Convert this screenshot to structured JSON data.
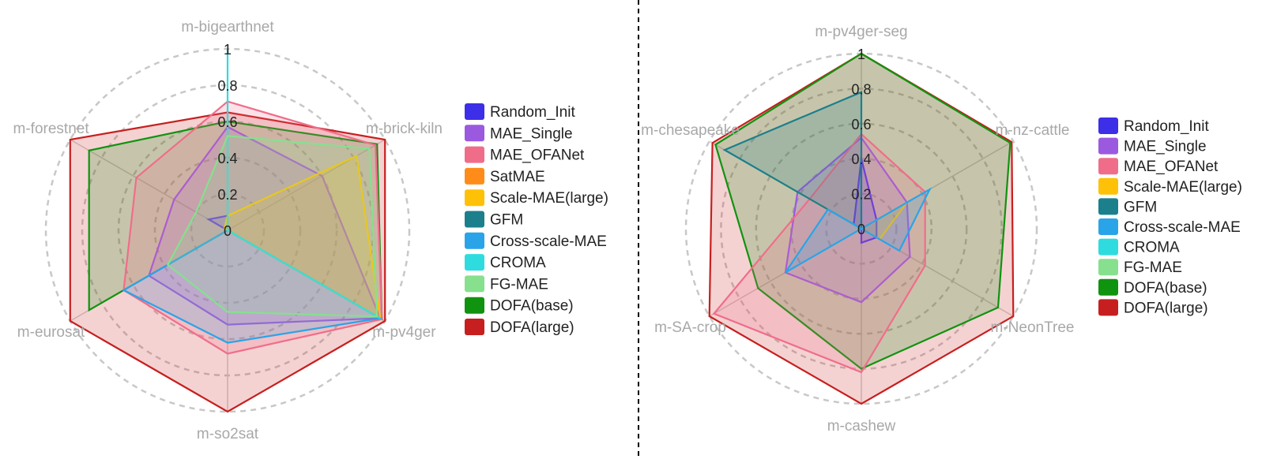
{
  "chart_data": [
    {
      "type": "radar",
      "id": "left",
      "axes": [
        "m-bigearthnet",
        "m-brick-kiln",
        "m-pv4ger",
        "m-so2sat",
        "m-eurosat",
        "m-forestnet"
      ],
      "ticks": [
        "0",
        "0.2",
        "0.4",
        "0.6",
        "0.8",
        "1"
      ],
      "rmax": 1,
      "series": [
        {
          "name": "Random_Init",
          "color": "#3d2ee8",
          "values": [
            0.08,
            0.0,
            0.0,
            0.0,
            0.0,
            0.12
          ],
          "visible": true
        },
        {
          "name": "MAE_Single",
          "color": "#9b59e0",
          "values": [
            0.57,
            0.6,
            0.97,
            0.52,
            0.5,
            0.34
          ],
          "visible": true
        },
        {
          "name": "MAE_OFANet",
          "color": "#f06d8a",
          "values": [
            0.71,
            0.94,
            0.98,
            0.68,
            0.66,
            0.58
          ],
          "visible": true
        },
        {
          "name": "SatMAE",
          "color": "#ff8c1a",
          "values": [
            0.0,
            0.0,
            0.0,
            0.0,
            0.0,
            0.0
          ],
          "visible": false
        },
        {
          "name": "Scale-MAE(large)",
          "color": "#ffc107",
          "values": [
            0.08,
            0.82,
            0.97,
            0.0,
            0.0,
            0.02
          ],
          "visible": true
        },
        {
          "name": "GFM",
          "color": "#1b7f8c",
          "values": [
            0.0,
            0.0,
            0.0,
            0.0,
            0.0,
            0.0
          ],
          "visible": false
        },
        {
          "name": "Cross-scale-MAE",
          "color": "#2aa4e8",
          "values": [
            0.0,
            0.0,
            0.97,
            0.62,
            0.66,
            0.0
          ],
          "visible": true
        },
        {
          "name": "CROMA",
          "color": "#2edce0",
          "values": [
            1.0,
            0.0,
            0.97,
            0.0,
            0.0,
            0.0
          ],
          "visible": true
        },
        {
          "name": "FG-MAE",
          "color": "#86e08e",
          "values": [
            0.52,
            0.9,
            0.95,
            0.45,
            0.38,
            0.2
          ],
          "visible": true
        },
        {
          "name": "DOFA(base)",
          "color": "#10930f",
          "values": [
            0.6,
            0.95,
            0.98,
            0.0,
            0.88,
            0.88
          ],
          "visible": true
        },
        {
          "name": "DOFA(large)",
          "color": "#c71f1f",
          "values": [
            0.65,
            1.0,
            1.0,
            1.0,
            1.0,
            1.0
          ],
          "visible": true
        }
      ]
    },
    {
      "type": "radar",
      "id": "right",
      "axes": [
        "m-pv4ger-seg",
        "m-nz-cattle",
        "m-NeonTree",
        "m-cashew",
        "m-SA-crop",
        "m-chesapeake"
      ],
      "ticks": [
        "0",
        "0.2",
        "0.4",
        "0.6",
        "0.8",
        "1"
      ],
      "rmax": 1,
      "series": [
        {
          "name": "Random_Init",
          "color": "#3d2ee8",
          "values": [
            0.4,
            0.1,
            0.1,
            0.08,
            0.0,
            0.05
          ],
          "visible": true
        },
        {
          "name": "MAE_Single",
          "color": "#9b59e0",
          "values": [
            0.52,
            0.3,
            0.32,
            0.42,
            0.5,
            0.42
          ],
          "visible": true
        },
        {
          "name": "MAE_OFANet",
          "color": "#f06d8a",
          "values": [
            0.54,
            0.42,
            0.42,
            0.82,
            0.97,
            0.34
          ],
          "visible": true
        },
        {
          "name": "Scale-MAE(large)",
          "color": "#ffc107",
          "values": [
            0.0,
            0.3,
            0.12,
            0.0,
            0.0,
            0.6
          ],
          "visible": true
        },
        {
          "name": "GFM",
          "color": "#1b7f8c",
          "values": [
            0.78,
            0.0,
            0.0,
            0.0,
            0.0,
            0.9
          ],
          "visible": true
        },
        {
          "name": "Cross-scale-MAE",
          "color": "#2aa4e8",
          "values": [
            0.0,
            0.45,
            0.25,
            0.0,
            0.5,
            0.22
          ],
          "visible": true
        },
        {
          "name": "CROMA",
          "color": "#2edce0",
          "values": [
            0.0,
            0.0,
            0.0,
            0.0,
            0.0,
            0.0
          ],
          "visible": false
        },
        {
          "name": "FG-MAE",
          "color": "#86e08e",
          "values": [
            0.0,
            0.0,
            0.0,
            0.0,
            0.0,
            0.0
          ],
          "visible": false
        },
        {
          "name": "DOFA(base)",
          "color": "#10930f",
          "values": [
            1.0,
            0.98,
            0.9,
            0.8,
            0.68,
            0.96
          ],
          "visible": true
        },
        {
          "name": "DOFA(large)",
          "color": "#c71f1f",
          "values": [
            1.0,
            0.99,
            1.0,
            1.0,
            1.0,
            0.98
          ],
          "visible": true
        }
      ]
    }
  ]
}
